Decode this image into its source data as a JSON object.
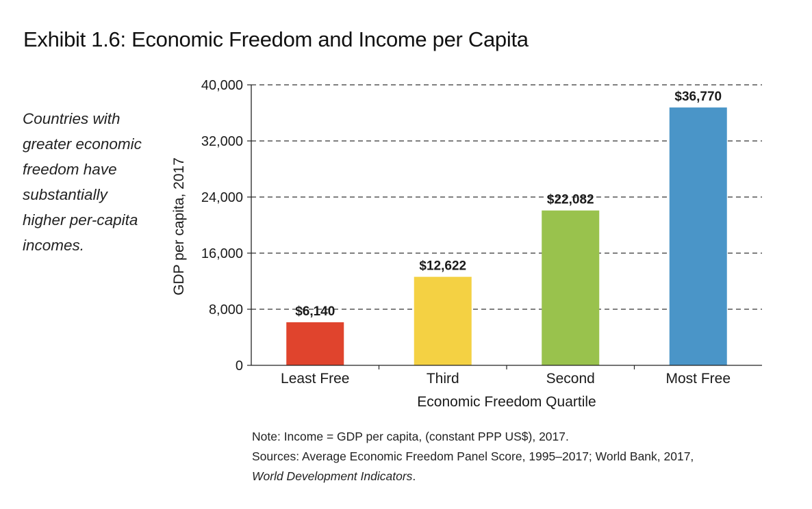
{
  "title": "Exhibit 1.6: Economic Freedom and Income per Capita",
  "side_note_lines": [
    "Countries with",
    "greater economic",
    "freedom have",
    "substantially",
    "higher per-capita",
    "incomes."
  ],
  "chart_data": {
    "type": "bar",
    "categories": [
      "Least Free",
      "Third",
      "Second",
      "Most Free"
    ],
    "values": [
      6140,
      12622,
      22082,
      36770
    ],
    "data_labels": [
      "$6,140",
      "$12,622",
      "$22,082",
      "$36,770"
    ],
    "colors": [
      "#e0442d",
      "#f4d143",
      "#99c24d",
      "#4a95c8"
    ],
    "xlabel": "Economic Freedom Quartile",
    "ylabel": "GDP per capita, 2017",
    "ylim": [
      0,
      40000
    ],
    "yticks": [
      0,
      8000,
      16000,
      24000,
      32000,
      40000
    ],
    "ytick_labels": [
      "0",
      "8,000",
      "16,000",
      "24,000",
      "32,000",
      "40,000"
    ],
    "grid": "horizontal dashed"
  },
  "footnote": {
    "note": "Note: Income = GDP per capita, (constant PPP US$), 2017.",
    "sources": "Sources: Average Economic Freedom Panel Score, 1995–2017; World Bank, 2017,",
    "source_title": "World Development Indicators",
    "source_title_end": "."
  }
}
